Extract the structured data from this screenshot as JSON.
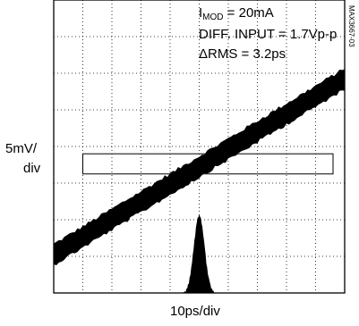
{
  "chart_data": {
    "type": "oscilloscope-eye",
    "title": "",
    "xlabel": "10ps/div",
    "ylabel": [
      "5mV/",
      "div"
    ],
    "x_divisions": 10,
    "y_divisions": 8,
    "annotations": {
      "imod_prefix": "I",
      "imod_subscript": "MOD",
      "imod_value": " = 20mA",
      "diff_input": "DIFF. INPUT = 1.7Vp-p",
      "delta_rms": "ΔRMS = 3.2ps"
    },
    "figure_id": "MAX3667-03",
    "trace": {
      "description": "jittered diagonal edge",
      "start_div": [
        0,
        6.95
      ],
      "end_div": [
        10,
        2.15
      ],
      "thickness_div": 0.48
    },
    "histogram_window": {
      "x_div": [
        1,
        9.6
      ],
      "y_div": [
        4.2,
        4.75
      ]
    },
    "jitter_histogram": {
      "center_x_div": 5.0,
      "half_width_div": 0.55,
      "peak_height_div": 2.15
    },
    "colors": {
      "trace": "#000000",
      "grid": "#000000",
      "background": "#ffffff"
    }
  }
}
